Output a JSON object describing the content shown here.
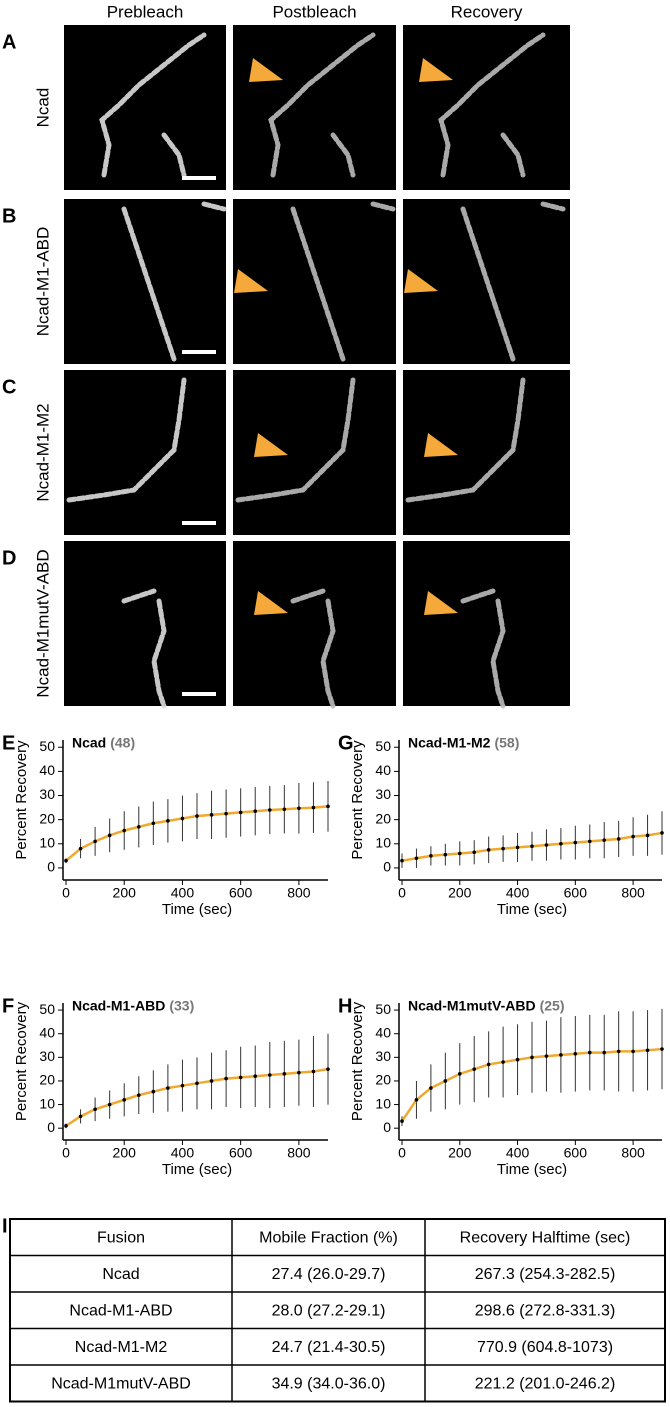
{
  "image_panels": {
    "column_headers": [
      "Prebleach",
      "Postbleach",
      "Recovery"
    ],
    "rows": [
      {
        "letter": "A",
        "label": "Ncad"
      },
      {
        "letter": "B",
        "label": "Ncad-M1-ABD"
      },
      {
        "letter": "C",
        "label": "Ncad-M1-M2"
      },
      {
        "letter": "D",
        "label": "Ncad-M1mutV-ABD"
      }
    ]
  },
  "chart_data": [
    {
      "type": "line",
      "label": "E",
      "title": "Ncad",
      "count_label": "(48)",
      "xlabel": "Time (sec)",
      "ylabel": "Percent Recovery",
      "xlim": [
        0,
        900
      ],
      "ylim": [
        -5,
        53
      ],
      "xticks": [
        0,
        200,
        400,
        600,
        800
      ],
      "yticks": [
        0,
        10,
        20,
        30,
        40,
        50
      ],
      "color": "#000000",
      "line_color": "#f0a830",
      "x": [
        0,
        50,
        100,
        150,
        200,
        250,
        300,
        350,
        400,
        450,
        500,
        550,
        600,
        650,
        700,
        750,
        800,
        850,
        900
      ],
      "values": [
        3,
        8,
        11,
        13.5,
        15.5,
        17,
        18.5,
        19.5,
        20.5,
        21.5,
        22,
        22.5,
        23,
        23.5,
        24,
        24.3,
        24.7,
        25,
        25.5
      ],
      "errors": [
        1,
        4,
        6,
        7,
        8,
        8.5,
        9,
        9,
        9.5,
        9.5,
        10,
        10,
        10,
        10,
        10,
        10,
        10.5,
        10.5,
        10.5
      ]
    },
    {
      "type": "line",
      "label": "F",
      "title": "Ncad-M1-ABD",
      "count_label": "(33)",
      "xlabel": "Time (sec)",
      "ylabel": "Percent Recovery",
      "xlim": [
        0,
        900
      ],
      "ylim": [
        -5,
        53
      ],
      "xticks": [
        0,
        200,
        400,
        600,
        800
      ],
      "yticks": [
        0,
        10,
        20,
        30,
        40,
        50
      ],
      "color": "#000000",
      "line_color": "#f0a830",
      "x": [
        0,
        50,
        100,
        150,
        200,
        250,
        300,
        350,
        400,
        450,
        500,
        550,
        600,
        650,
        700,
        750,
        800,
        850,
        900
      ],
      "values": [
        1,
        5,
        8,
        10,
        12,
        14,
        15.5,
        17,
        18,
        19,
        20,
        21,
        21.5,
        22,
        22.5,
        23,
        23.5,
        24,
        25
      ],
      "errors": [
        1,
        3,
        5,
        6,
        7,
        8,
        9,
        10,
        11,
        11,
        12,
        12,
        13,
        13,
        14,
        14,
        14,
        15,
        15
      ]
    },
    {
      "type": "line",
      "label": "G",
      "title": "Ncad-M1-M2",
      "count_label": "(58)",
      "xlabel": "Time (sec)",
      "ylabel": "Percent Recovery",
      "xlim": [
        0,
        900
      ],
      "ylim": [
        -5,
        53
      ],
      "xticks": [
        0,
        200,
        400,
        600,
        800
      ],
      "yticks": [
        0,
        10,
        20,
        30,
        40,
        50
      ],
      "color": "#000000",
      "line_color": "#f0a830",
      "x": [
        0,
        50,
        100,
        150,
        200,
        250,
        300,
        350,
        400,
        450,
        500,
        550,
        600,
        650,
        700,
        750,
        800,
        850,
        900
      ],
      "values": [
        3,
        4,
        5,
        5.5,
        6,
        6.5,
        7.5,
        8,
        8.5,
        9,
        9.5,
        10,
        10.5,
        11,
        11.5,
        12,
        13,
        13.5,
        14.5
      ],
      "errors": [
        3,
        4,
        4,
        4.5,
        5,
        5,
        5.5,
        5.5,
        6,
        6,
        6.5,
        6.5,
        7,
        7,
        7.5,
        7.5,
        8,
        8.5,
        9
      ]
    },
    {
      "type": "line",
      "label": "H",
      "title": "Ncad-M1mutV-ABD",
      "count_label": "(25)",
      "xlabel": "Time (sec)",
      "ylabel": "Percent Recovery",
      "xlim": [
        0,
        900
      ],
      "ylim": [
        -5,
        53
      ],
      "xticks": [
        0,
        200,
        400,
        600,
        800
      ],
      "yticks": [
        0,
        10,
        20,
        30,
        40,
        50
      ],
      "color": "#000000",
      "line_color": "#f0a830",
      "x": [
        0,
        50,
        100,
        150,
        200,
        250,
        300,
        350,
        400,
        450,
        500,
        550,
        600,
        650,
        700,
        750,
        800,
        850,
        900
      ],
      "values": [
        3,
        12,
        17,
        20,
        23,
        25,
        27,
        28,
        29,
        30,
        30.5,
        31,
        31.5,
        32,
        32,
        32.5,
        32.5,
        33,
        33.5
      ],
      "errors": [
        2,
        8,
        10,
        12,
        13,
        14,
        14,
        15,
        15,
        15,
        15,
        16,
        16,
        16,
        16,
        17,
        17,
        17,
        17
      ]
    }
  ],
  "table": {
    "letter": "I",
    "header": [
      "Fusion",
      "Mobile Fraction (%)",
      "Recovery Halftime (sec)"
    ],
    "rows": [
      [
        "Ncad",
        "27.4 (26.0-29.7)",
        "267.3 (254.3-282.5)"
      ],
      [
        "Ncad-M1-ABD",
        "28.0 (27.2-29.1)",
        "298.6 (272.8-331.3)"
      ],
      [
        "Ncad-M1-M2",
        "24.7 (21.4-30.5)",
        "770.9 (604.8-1073)"
      ],
      [
        "Ncad-M1mutV-ABD",
        "34.9 (34.0-36.0)",
        "221.2 (201.0-246.2)"
      ]
    ]
  }
}
